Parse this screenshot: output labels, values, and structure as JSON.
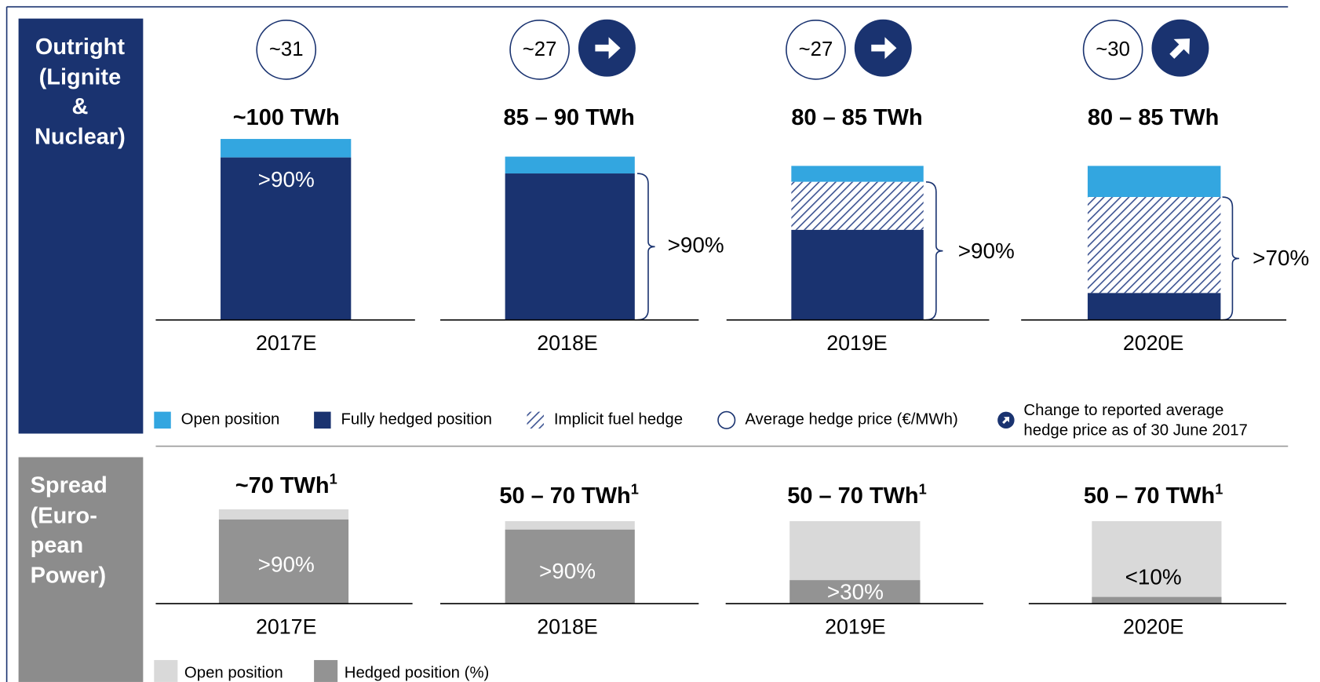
{
  "outright": {
    "label": [
      "Outright",
      "(Lignite",
      "&",
      "Nuclear)"
    ],
    "years": [
      {
        "price": "~31",
        "volume": "~100 TWh",
        "hedge": ">90%",
        "year": "2017E"
      },
      {
        "price": "~27",
        "volume": "85 – 90 TWh",
        "hedge": ">90%",
        "year": "2018E"
      },
      {
        "price": "~27",
        "volume": "80 – 85 TWh",
        "hedge": ">90%",
        "year": "2019E"
      },
      {
        "price": "~30",
        "volume": "80 – 85 TWh",
        "hedge": ">70%",
        "year": "2020E"
      }
    ],
    "legend": [
      "Open position",
      "Fully hedged position",
      "Implicit fuel hedge",
      "Average hedge price (€/MWh)",
      [
        "Change to reported average",
        "hedge price as of 30 June 2017"
      ]
    ]
  },
  "spread": {
    "label": [
      "Spread",
      "(Euro-",
      "pean",
      "Power)"
    ],
    "years": [
      {
        "volume": "~70 TWh",
        "footnote": "1",
        "hedge": ">90%",
        "year": "2017E"
      },
      {
        "volume": "50 – 70 TWh",
        "footnote": "1",
        "hedge": ">90%",
        "year": "2018E"
      },
      {
        "volume": "50 – 70 TWh",
        "footnote": "1",
        "hedge": ">30%",
        "year": "2019E"
      },
      {
        "volume": "50 – 70 TWh",
        "footnote": "1",
        "hedge": "<10%",
        "year": "2020E"
      }
    ],
    "legend": [
      "Open position",
      "Hedged position (%)"
    ]
  }
}
